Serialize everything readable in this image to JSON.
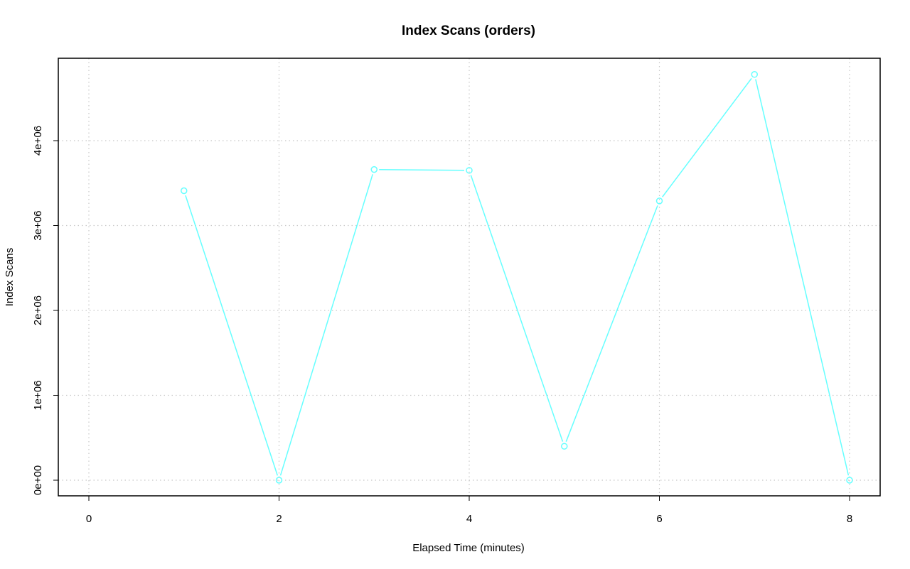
{
  "chart_data": {
    "type": "line",
    "title": "Index Scans (orders)",
    "xlabel": "Elapsed Time (minutes)",
    "ylabel": "Index Scans",
    "xlim": [
      0,
      8
    ],
    "ylim": [
      0,
      4800000
    ],
    "x_ticks": [
      0,
      2,
      4,
      6,
      8
    ],
    "x_tick_labels": [
      "0",
      "2",
      "4",
      "6",
      "8"
    ],
    "y_ticks": [
      0,
      1000000,
      2000000,
      3000000,
      4000000
    ],
    "y_tick_labels": [
      "0e+00",
      "1e+06",
      "2e+06",
      "3e+06",
      "4e+06"
    ],
    "grid": true,
    "series": [
      {
        "color": "#66ffff",
        "marker": "open-circle",
        "x": [
          1,
          2,
          3,
          4,
          5,
          6,
          7,
          8
        ],
        "values": [
          3410000,
          0,
          3660000,
          3650000,
          400000,
          3290000,
          4780000,
          0
        ]
      }
    ]
  }
}
